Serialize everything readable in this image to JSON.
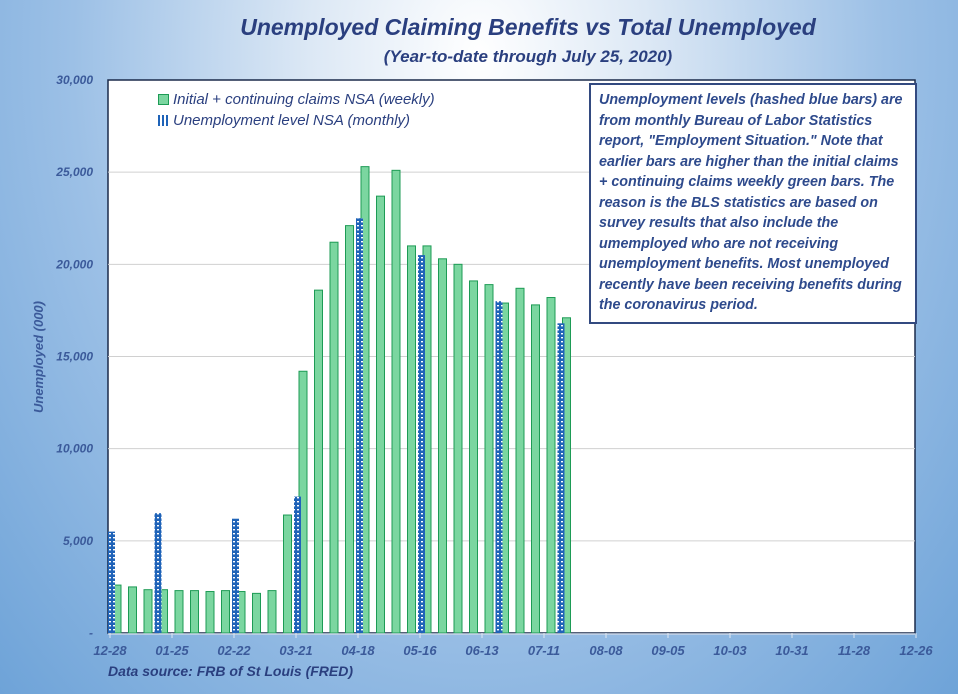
{
  "chart_data": {
    "type": "bar",
    "title": "Unemployed Claiming Benefits vs Total Unemployed",
    "subtitle": "(Year-to-date through July 25, 2020)",
    "xlabel": "",
    "ylabel": "Unemployed (000)",
    "ylim": [
      0,
      30000
    ],
    "yticks": [
      {
        "value": 0,
        "label": "-"
      },
      {
        "value": 5000,
        "label": "5,000"
      },
      {
        "value": 10000,
        "label": "10,000"
      },
      {
        "value": 15000,
        "label": "15,000"
      },
      {
        "value": 20000,
        "label": "20,000"
      },
      {
        "value": 25000,
        "label": "25,000"
      },
      {
        "value": 30000,
        "label": "30,000"
      }
    ],
    "grid": true,
    "legend_position": "top-left inside",
    "xticks": [
      "12-28",
      "01-25",
      "02-22",
      "03-21",
      "04-18",
      "05-16",
      "06-13",
      "07-11",
      "08-08",
      "09-05",
      "10-03",
      "10-31",
      "11-28",
      "12-26"
    ],
    "series": [
      {
        "name": "Initial + continuing claims NSA (weekly)",
        "style": "solid green",
        "color": "#7bd6a0",
        "edge": "#1d9b55",
        "x_week_index": [
          0,
          1,
          2,
          3,
          4,
          5,
          6,
          7,
          8,
          9,
          10,
          11,
          12,
          13,
          14,
          15,
          16,
          17,
          18,
          19,
          20,
          21,
          22,
          23,
          24,
          25,
          26,
          27,
          28,
          29
        ],
        "values": [
          2600,
          2500,
          2350,
          2350,
          2300,
          2300,
          2250,
          2300,
          2250,
          2150,
          2300,
          6400,
          14200,
          18600,
          21200,
          22100,
          25300,
          23700,
          25100,
          21000,
          21000,
          20300,
          20000,
          19100,
          18900,
          17900,
          18700,
          17800,
          18200,
          17100
        ]
      },
      {
        "name": "Unemployment level NSA (monthly)",
        "style": "hashed blue",
        "color": "#1f63b8",
        "x_week_index": [
          0,
          3,
          8,
          12,
          16,
          20,
          25,
          29
        ],
        "values": [
          5500,
          6500,
          6200,
          7400,
          22500,
          20500,
          18000,
          16800
        ]
      }
    ]
  },
  "legend": {
    "items": [
      {
        "label": "Initial + continuing claims NSA (weekly)"
      },
      {
        "label": "Unemployment level NSA (monthly)"
      }
    ]
  },
  "note": {
    "text": "Unemployment levels (hashed blue bars) are from monthly Bureau of Labor Statistics report, \"Employment Situation.\" Note that earlier bars are higher than the initial claims + continuing claims weekly green bars. The reason is the BLS statistics are based on survey results that also include the umemployed who are not receiving unemployment benefits. Most unemployed recently have been receiving benefits during the coronavirus period."
  },
  "source": "Data source: FRB of St Louis (FRED)"
}
